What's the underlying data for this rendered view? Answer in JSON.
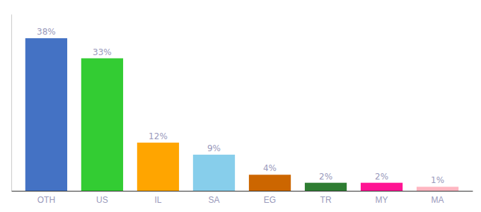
{
  "chart_data": {
    "type": "bar",
    "categories": [
      "OTH",
      "US",
      "IL",
      "SA",
      "EG",
      "TR",
      "MY",
      "MA"
    ],
    "values": [
      38,
      33,
      12,
      9,
      4,
      2,
      2,
      1
    ],
    "value_labels": [
      "38%",
      "33%",
      "12%",
      "9%",
      "4%",
      "2%",
      "2%",
      "1%"
    ],
    "colors": [
      "#4472C4",
      "#33CC33",
      "#FFA500",
      "#87CEEB",
      "#CC6600",
      "#2E7D32",
      "#FF1493",
      "#FFB6C1"
    ],
    "ylim": [
      0,
      44
    ],
    "grid": false,
    "data_labels": true,
    "tick_labels": "x"
  }
}
